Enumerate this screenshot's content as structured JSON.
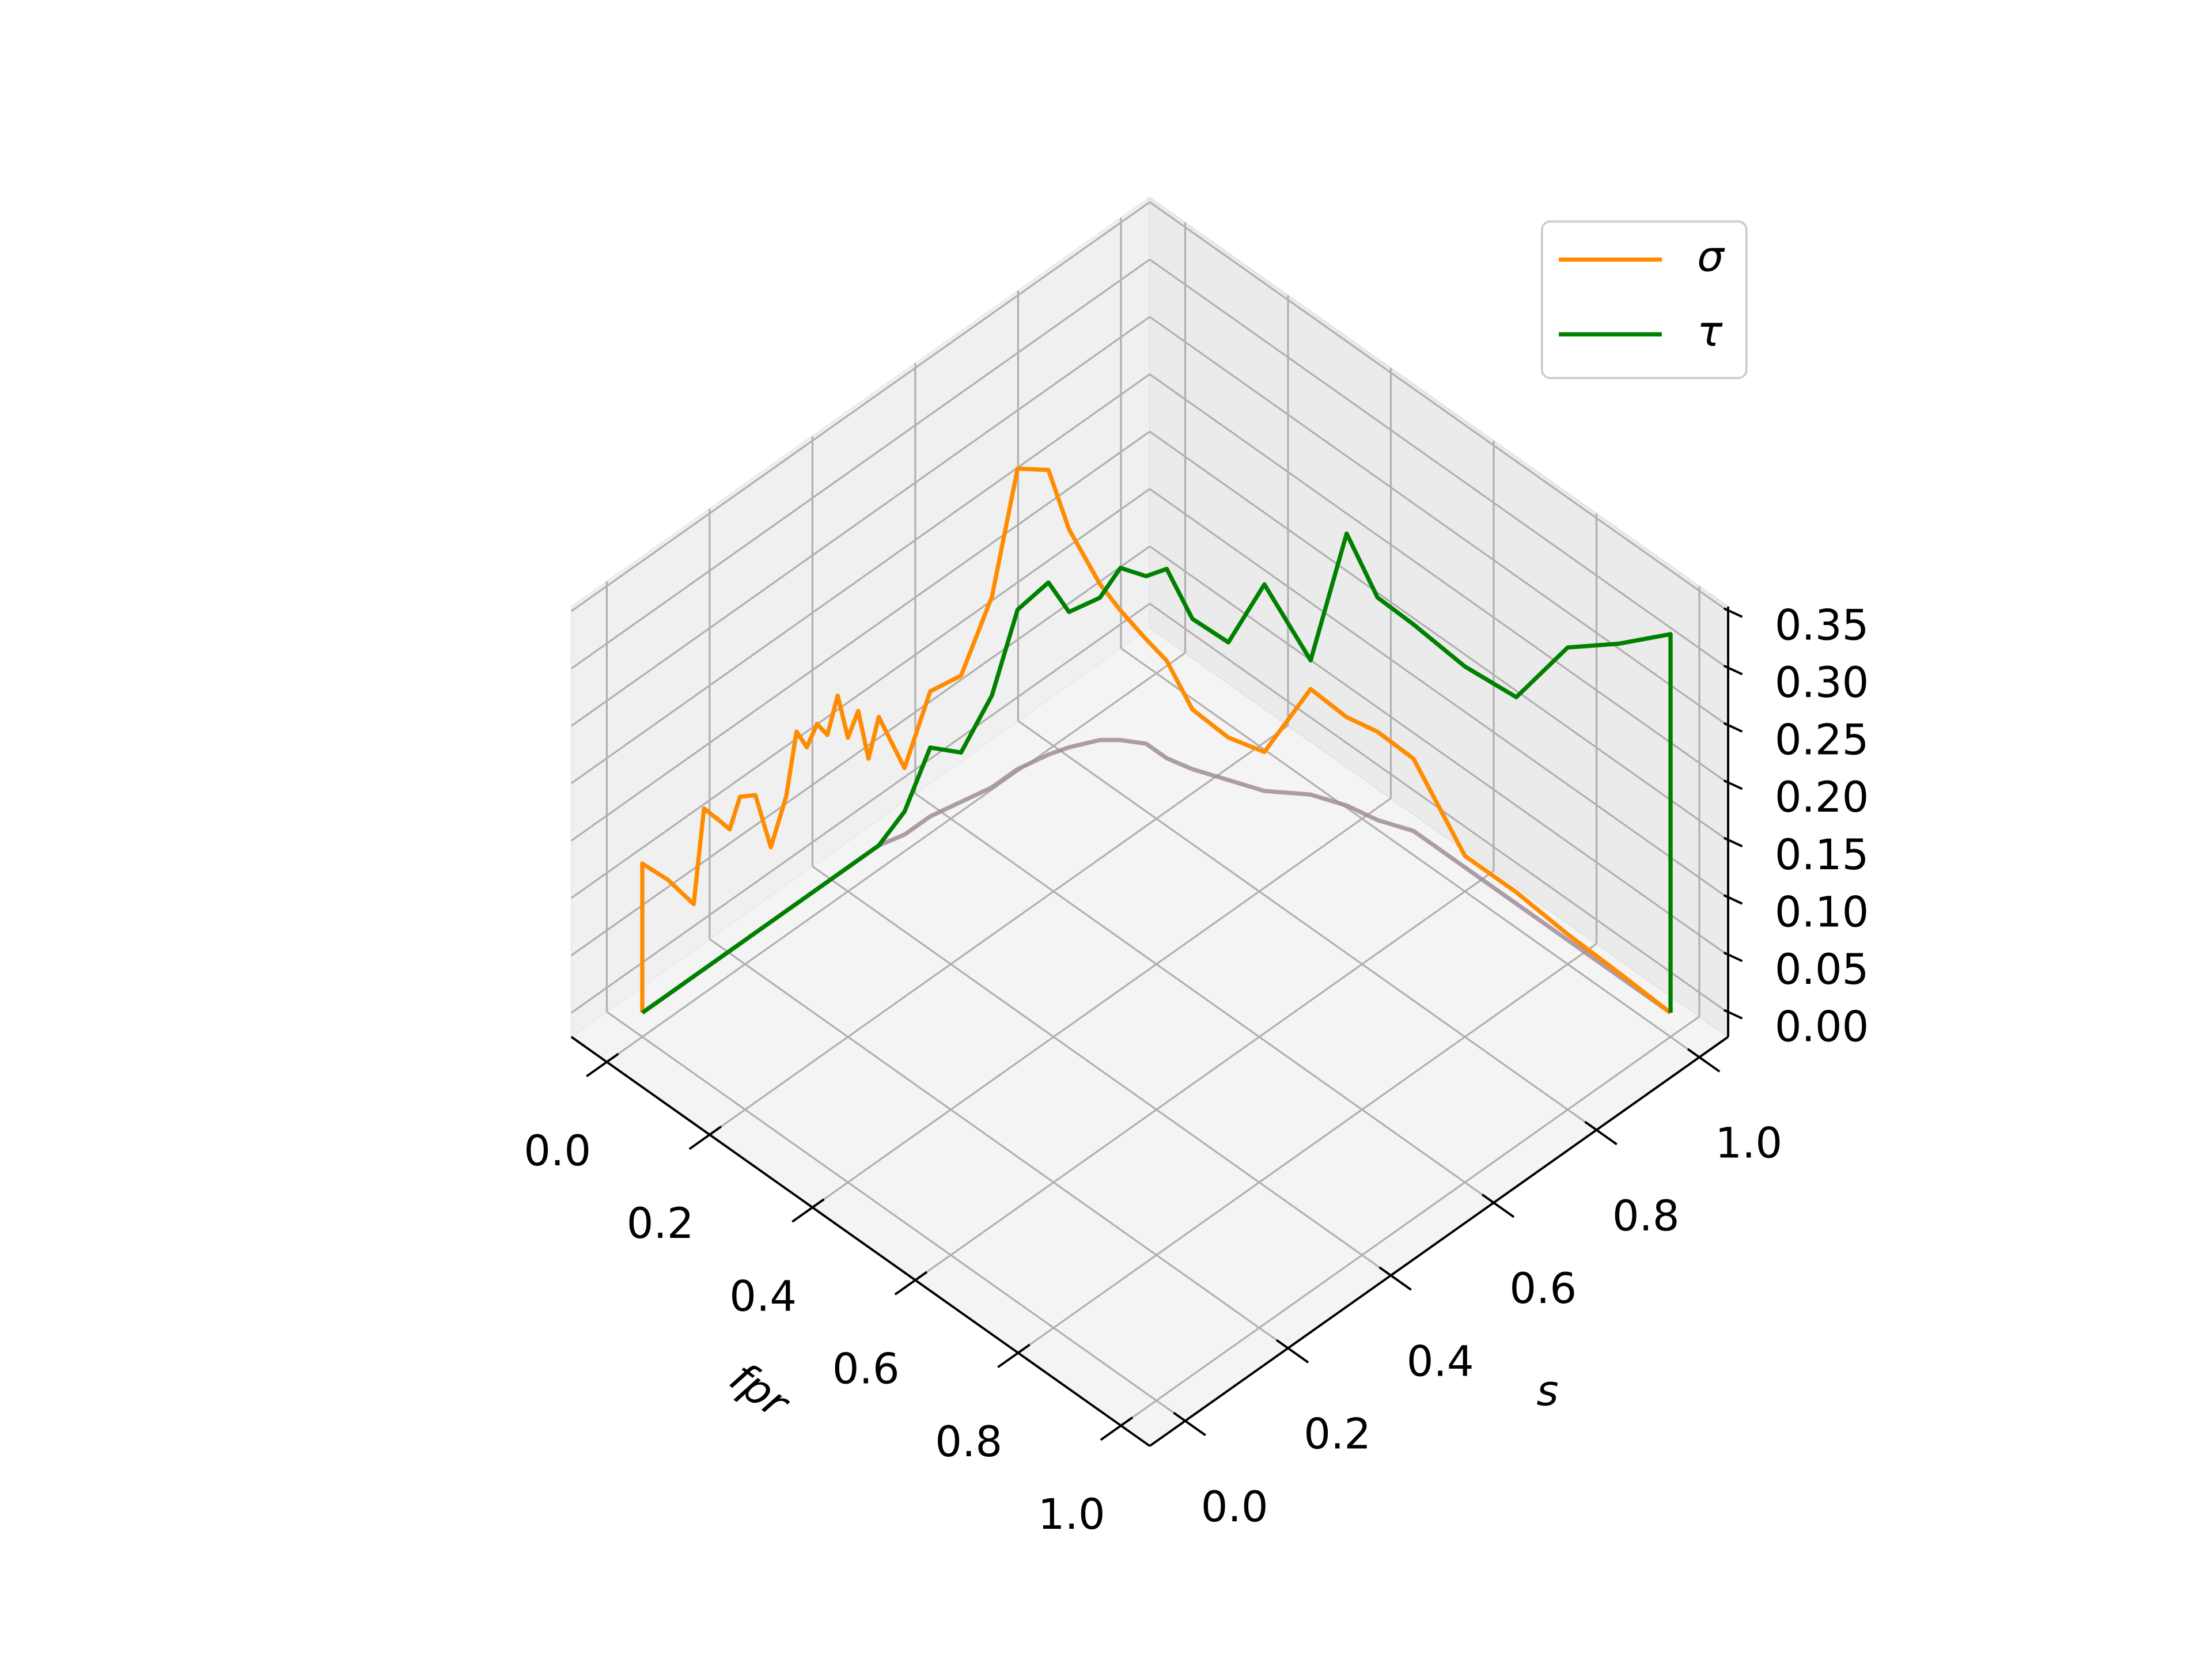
{
  "chart_data": {
    "type": "line3d",
    "xlabel": "fpr",
    "ylabel": "s",
    "x": [
      0,
      0,
      0,
      0,
      0,
      0,
      0,
      0,
      0,
      0,
      0,
      0,
      0,
      0,
      0,
      0,
      0,
      0,
      0,
      0,
      0.01,
      0.01,
      0.02,
      0.03,
      0.03,
      0.04,
      0.05,
      0.07,
      0.09,
      0.12,
      0.16,
      0.2,
      0.25,
      0.3,
      0.35,
      0.4,
      0.45,
      0.5,
      0.6,
      0.7,
      0.8,
      0.9,
      1,
      1
    ],
    "y": [
      0,
      0,
      0.05,
      0.1,
      0.12,
      0.15,
      0.17,
      0.19,
      0.22,
      0.25,
      0.28,
      0.3,
      0.32,
      0.34,
      0.36,
      0.38,
      0.4,
      0.42,
      0.44,
      0.46,
      0.5,
      0.55,
      0.6,
      0.65,
      0.7,
      0.75,
      0.78,
      0.82,
      0.84,
      0.86,
      0.86,
      0.87,
      0.89,
      0.91,
      0.95,
      0.97,
      0.98,
      1,
      1,
      1,
      1,
      1,
      1,
      1
    ],
    "series": [
      {
        "color": "#a08c98",
        "values": [
          0,
          0,
          0,
          0,
          0,
          0,
          0,
          0,
          0,
          0,
          0,
          0,
          0,
          0,
          0,
          0,
          0,
          0,
          0,
          0,
          0,
          0,
          0,
          0,
          0,
          0,
          0,
          0,
          0,
          0,
          0,
          0,
          0,
          0,
          0,
          0,
          0,
          0,
          0,
          0,
          0,
          0,
          0,
          0
        ]
      },
      {
        "name": "σ",
        "color": "#ff8c00",
        "values": [
          0,
          0.13,
          0.1,
          0.063,
          0.14,
          0.12,
          0.106,
          0.128,
          0.12,
          0.065,
          0.1,
          0.15,
          0.13,
          0.144,
          0.128,
          0.156,
          0.113,
          0.13,
          0.082,
          0.112,
          0.058,
          0.109,
          0.11,
          0.166,
          0.262,
          0.248,
          0.19,
          0.136,
          0.113,
          0.091,
          0.085,
          0.052,
          0.037,
          0.034,
          0.092,
          0.077,
          0.077,
          0.063,
          0.01,
          0.01,
          0.005,
          0.003,
          0,
          0
        ]
      },
      {
        "name": "τ",
        "color": "#008000",
        "values": [
          0,
          0,
          0,
          0,
          0,
          0,
          0,
          0,
          0,
          0,
          0,
          0,
          0,
          0,
          0,
          0,
          0,
          0,
          0,
          0,
          0.02,
          0.06,
          0.043,
          0.08,
          0.139,
          0.15,
          0.118,
          0.124,
          0.15,
          0.146,
          0.165,
          0.131,
          0.12,
          0.18,
          0.117,
          0.237,
          0.194,
          0.18,
          0.175,
          0.18,
          0.255,
          0.29,
          0.33,
          0
        ]
      }
    ],
    "xlim": [
      -0.069,
      1.056
    ],
    "ylim": [
      -0.069,
      1.056
    ],
    "zlim": [
      -0.021,
      0.354
    ],
    "xticks": [
      {
        "value": 0,
        "label": "0.0"
      },
      {
        "value": 0.2,
        "label": "0.2"
      },
      {
        "value": 0.4,
        "label": "0.4"
      },
      {
        "value": 0.6,
        "label": "0.6"
      },
      {
        "value": 0.8,
        "label": "0.8"
      },
      {
        "value": 1,
        "label": "1.0"
      }
    ],
    "yticks": [
      {
        "value": 0,
        "label": "0.0"
      },
      {
        "value": 0.2,
        "label": "0.2"
      },
      {
        "value": 0.4,
        "label": "0.4"
      },
      {
        "value": 0.6,
        "label": "0.6"
      },
      {
        "value": 0.8,
        "label": "0.8"
      },
      {
        "value": 1,
        "label": "1.0"
      }
    ],
    "zticks": [
      {
        "value": 0,
        "label": "0.00"
      },
      {
        "value": 0.05,
        "label": "0.05"
      },
      {
        "value": 0.1,
        "label": "0.10"
      },
      {
        "value": 0.15,
        "label": "0.15"
      },
      {
        "value": 0.2,
        "label": "0.20"
      },
      {
        "value": 0.25,
        "label": "0.25"
      },
      {
        "value": 0.3,
        "label": "0.30"
      },
      {
        "value": 0.35,
        "label": "0.35"
      }
    ],
    "grid": true,
    "legend": "upper right"
  }
}
